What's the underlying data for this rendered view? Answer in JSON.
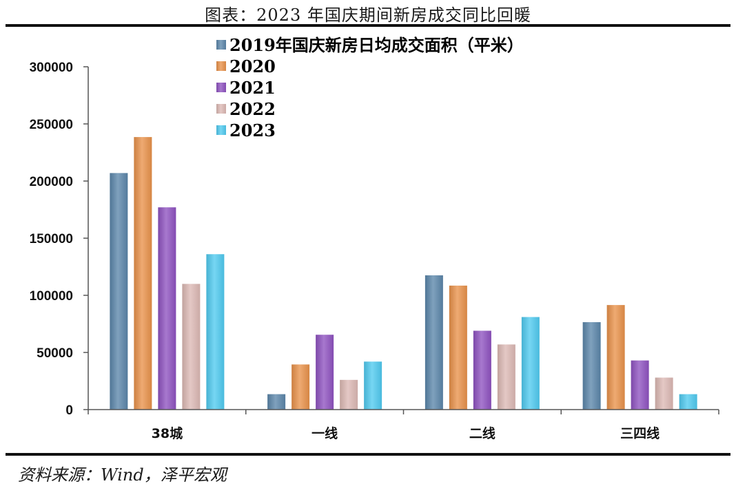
{
  "title": "图表：2023 年国庆期间新房成交同比回暖",
  "source": "资料来源：Wind，泽平宏观",
  "chart_data": {
    "type": "bar",
    "title": "图表：2023 年国庆期间新房成交同比回暖",
    "xlabel": "",
    "ylabel": "",
    "ylim": [
      0,
      300000
    ],
    "yticks": [
      "0",
      "50000",
      "100000",
      "150000",
      "200000",
      "250000",
      "300000"
    ],
    "categories": [
      "38城",
      "一线",
      "二线",
      "三四线"
    ],
    "legend_position": "top-center",
    "series": [
      {
        "name": "2019年国庆新房日均成交面积（平米）",
        "color": "#5b86aa",
        "values": [
          207000,
          13500,
          117500,
          76500
        ]
      },
      {
        "name": "2020",
        "color": "#e9924a",
        "values": [
          238500,
          39500,
          108500,
          91500
        ]
      },
      {
        "name": "2021",
        "color": "#8e52c0",
        "values": [
          177000,
          65500,
          69000,
          43000
        ]
      },
      {
        "name": "2022",
        "color": "#ddb9b4",
        "values": [
          110000,
          26000,
          57000,
          28000
        ]
      },
      {
        "name": "2023",
        "color": "#4fcaf0",
        "values": [
          136000,
          42000,
          81000,
          13500
        ]
      }
    ]
  }
}
